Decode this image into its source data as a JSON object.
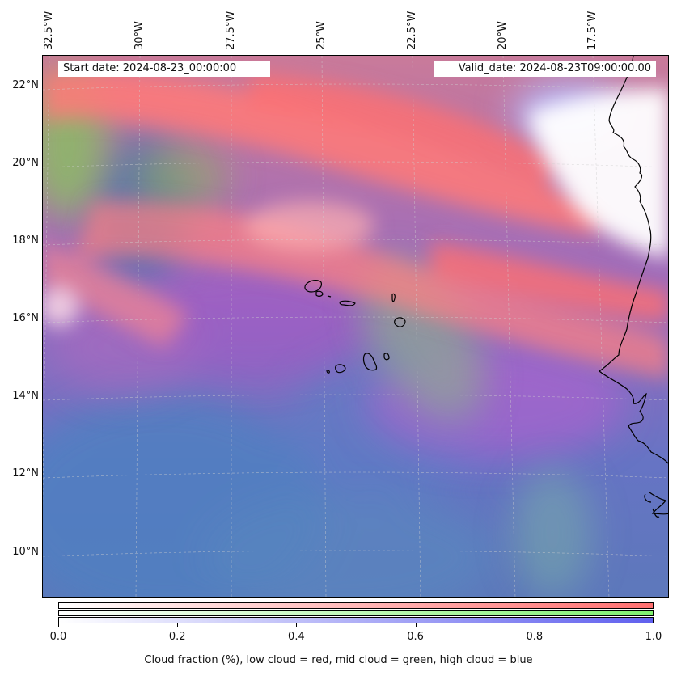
{
  "header": {
    "start_date": "Start date: 2024-08-23_00:00:00",
    "valid_date": "Valid_date: 2024-08-23T09:00:00.00"
  },
  "axes": {
    "longitude_labels": [
      "32.5°W",
      "30°W",
      "27.5°W",
      "25°W",
      "22.5°W",
      "20°W",
      "17.5°W"
    ],
    "latitude_labels": [
      "22°N",
      "20°N",
      "18°N",
      "16°N",
      "14°N",
      "12°N",
      "10°N"
    ],
    "lon_range": [
      -32.5,
      -15.5
    ],
    "lat_range": [
      8.8,
      22.8
    ]
  },
  "colorbar": {
    "tick_labels": [
      "0.0",
      "0.2",
      "0.4",
      "0.6",
      "0.8",
      "1.0"
    ],
    "caption": "Cloud fraction (%), low cloud = red, mid cloud = green, high cloud = blue",
    "colors": {
      "low": "#ff7070",
      "mid": "#80f070",
      "high": "#6060ee"
    }
  },
  "map": {
    "gridlines": true,
    "coastlines": true,
    "region": "Cape Verde and West African coast"
  }
}
